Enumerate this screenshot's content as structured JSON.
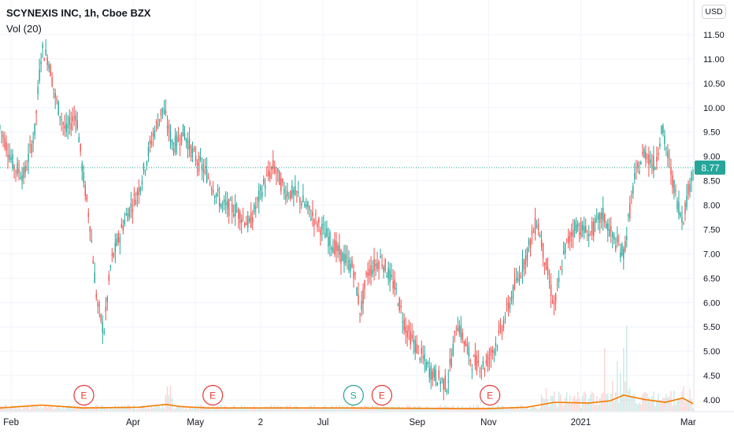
{
  "legend": {
    "title": "SCYNEXIS INC, 1h, Cboe BZX",
    "volume": "Vol (20)"
  },
  "currency_label": "USD",
  "last_price": "8.77",
  "colors": {
    "up": "#26a69a",
    "down": "#ef5350",
    "last_price_bg": "#26a69a",
    "volume_ma": "#f57c00",
    "earnings": "#e53935",
    "split": "#26a69a",
    "grid": "#f0f3fa"
  },
  "chart_data": {
    "type": "candlestick",
    "title": "SCYNEXIS INC, 1h, Cboe BZX",
    "y_axis": {
      "ticks": [
        "11.50",
        "11.00",
        "10.50",
        "10.00",
        "9.50",
        "9.00",
        "8.50",
        "8.00",
        "7.50",
        "7.00",
        "6.50",
        "6.00",
        "5.50",
        "5.00",
        "4.50",
        "4.00"
      ],
      "min": 4.0,
      "max": 11.5,
      "position": "right",
      "unit": "USD"
    },
    "x_axis": {
      "ticks": [
        "Feb",
        "Apr",
        "May",
        "2",
        "Jul",
        "Sep",
        "Nov",
        "2021",
        "Mar"
      ]
    },
    "price_path": [
      {
        "t": 0.0,
        "p": 9.6
      },
      {
        "t": 0.01,
        "p": 9.2
      },
      {
        "t": 0.02,
        "p": 8.8
      },
      {
        "t": 0.035,
        "p": 8.6
      },
      {
        "t": 0.05,
        "p": 9.5
      },
      {
        "t": 0.06,
        "p": 11.2
      },
      {
        "t": 0.07,
        "p": 11.0
      },
      {
        "t": 0.08,
        "p": 10.2
      },
      {
        "t": 0.095,
        "p": 9.5
      },
      {
        "t": 0.11,
        "p": 9.9
      },
      {
        "t": 0.12,
        "p": 8.6
      },
      {
        "t": 0.13,
        "p": 7.6
      },
      {
        "t": 0.14,
        "p": 6.0
      },
      {
        "t": 0.15,
        "p": 5.4
      },
      {
        "t": 0.16,
        "p": 6.8
      },
      {
        "t": 0.18,
        "p": 7.7
      },
      {
        "t": 0.2,
        "p": 8.3
      },
      {
        "t": 0.22,
        "p": 9.4
      },
      {
        "t": 0.235,
        "p": 10.0
      },
      {
        "t": 0.25,
        "p": 9.2
      },
      {
        "t": 0.265,
        "p": 9.5
      },
      {
        "t": 0.28,
        "p": 9.0
      },
      {
        "t": 0.3,
        "p": 8.6
      },
      {
        "t": 0.32,
        "p": 8.0
      },
      {
        "t": 0.34,
        "p": 7.9
      },
      {
        "t": 0.36,
        "p": 7.6
      },
      {
        "t": 0.38,
        "p": 8.4
      },
      {
        "t": 0.395,
        "p": 8.8
      },
      {
        "t": 0.41,
        "p": 8.3
      },
      {
        "t": 0.43,
        "p": 8.2
      },
      {
        "t": 0.45,
        "p": 7.8
      },
      {
        "t": 0.47,
        "p": 7.4
      },
      {
        "t": 0.49,
        "p": 7.0
      },
      {
        "t": 0.51,
        "p": 6.7
      },
      {
        "t": 0.52,
        "p": 5.8
      },
      {
        "t": 0.53,
        "p": 6.6
      },
      {
        "t": 0.55,
        "p": 6.9
      },
      {
        "t": 0.57,
        "p": 6.3
      },
      {
        "t": 0.585,
        "p": 5.5
      },
      {
        "t": 0.6,
        "p": 5.1
      },
      {
        "t": 0.62,
        "p": 4.6
      },
      {
        "t": 0.645,
        "p": 4.3
      },
      {
        "t": 0.66,
        "p": 5.6
      },
      {
        "t": 0.68,
        "p": 4.8
      },
      {
        "t": 0.7,
        "p": 4.7
      },
      {
        "t": 0.72,
        "p": 5.3
      },
      {
        "t": 0.74,
        "p": 6.2
      },
      {
        "t": 0.76,
        "p": 7.0
      },
      {
        "t": 0.775,
        "p": 7.7
      },
      {
        "t": 0.79,
        "p": 6.6
      },
      {
        "t": 0.8,
        "p": 5.9
      },
      {
        "t": 0.815,
        "p": 7.1
      },
      {
        "t": 0.83,
        "p": 7.6
      },
      {
        "t": 0.85,
        "p": 7.4
      },
      {
        "t": 0.87,
        "p": 7.8
      },
      {
        "t": 0.885,
        "p": 7.3
      },
      {
        "t": 0.9,
        "p": 7.0
      },
      {
        "t": 0.915,
        "p": 8.5
      },
      {
        "t": 0.93,
        "p": 9.1
      },
      {
        "t": 0.945,
        "p": 8.8
      },
      {
        "t": 0.955,
        "p": 9.6
      },
      {
        "t": 0.965,
        "p": 8.9
      },
      {
        "t": 0.975,
        "p": 8.2
      },
      {
        "t": 0.985,
        "p": 7.7
      },
      {
        "t": 1.0,
        "p": 8.77
      }
    ],
    "volume_ma_path": [
      {
        "t": 0.0,
        "v": 0.1
      },
      {
        "t": 0.06,
        "v": 0.3
      },
      {
        "t": 0.12,
        "v": 0.1
      },
      {
        "t": 0.2,
        "v": 0.15
      },
      {
        "t": 0.24,
        "v": 0.35
      },
      {
        "t": 0.26,
        "v": 0.2
      },
      {
        "t": 0.3,
        "v": 0.1
      },
      {
        "t": 0.5,
        "v": 0.1
      },
      {
        "t": 0.7,
        "v": 0.05
      },
      {
        "t": 0.76,
        "v": 0.15
      },
      {
        "t": 0.8,
        "v": 0.5
      },
      {
        "t": 0.85,
        "v": 0.45
      },
      {
        "t": 0.88,
        "v": 0.6
      },
      {
        "t": 0.9,
        "v": 1.0
      },
      {
        "t": 0.93,
        "v": 0.7
      },
      {
        "t": 0.96,
        "v": 0.5
      },
      {
        "t": 0.985,
        "v": 0.8
      },
      {
        "t": 1.0,
        "v": 0.4
      }
    ],
    "events": [
      {
        "type": "E",
        "label": "E",
        "t": 0.121
      },
      {
        "type": "E",
        "label": "E",
        "t": 0.307
      },
      {
        "type": "S",
        "label": "S",
        "t": 0.51
      },
      {
        "type": "E",
        "label": "E",
        "t": 0.551
      },
      {
        "type": "E",
        "label": "E",
        "t": 0.707
      }
    ],
    "last_price": 8.77,
    "grid": true
  }
}
